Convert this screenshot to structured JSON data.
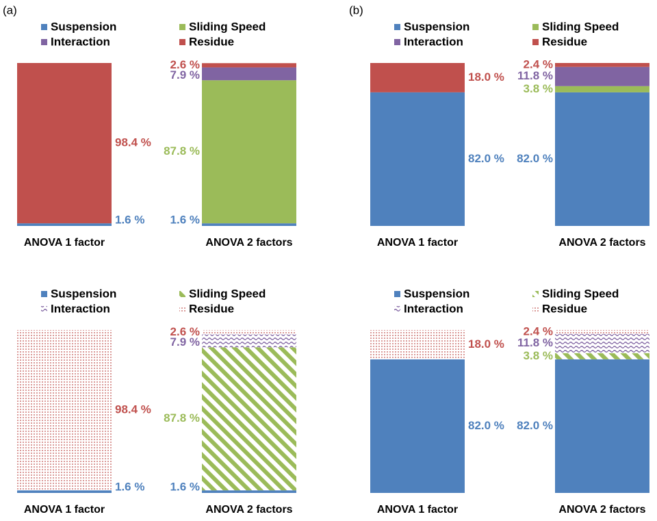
{
  "panel_labels": [
    "(a)",
    "(b)"
  ],
  "chart_data": [
    {
      "type": "bar",
      "stacked": true,
      "categories": [
        "ANOVA 1 factor",
        "ANOVA 2 factors"
      ],
      "ylim": [
        0,
        100
      ],
      "series": [
        {
          "name": "Suspension",
          "color": "#4f81bd",
          "values": [
            1.6,
            1.6
          ],
          "value_labels": [
            "1.6 %",
            "1.6 %"
          ]
        },
        {
          "name": "Sliding Speed",
          "color": "#9bbb59",
          "values": [
            null,
            87.8
          ],
          "value_labels": [
            null,
            "87.8 %"
          ]
        },
        {
          "name": "Interaction",
          "color": "#8064a2",
          "values": [
            null,
            7.9
          ],
          "value_labels": [
            null,
            "7.9 %"
          ]
        },
        {
          "name": "Residue",
          "color": "#c0504d",
          "values": [
            98.4,
            2.6
          ],
          "value_labels": [
            "98.4 %",
            "2.6 %"
          ]
        }
      ]
    },
    {
      "type": "bar",
      "stacked": true,
      "categories": [
        "ANOVA 1 factor",
        "ANOVA 2 factors"
      ],
      "ylim": [
        0,
        100
      ],
      "series": [
        {
          "name": "Suspension",
          "color": "#4f81bd",
          "values": [
            82,
            82
          ],
          "value_labels": [
            "82.0 %",
            "82.0 %"
          ]
        },
        {
          "name": "Sliding Speed",
          "color": "#9bbb59",
          "values": [
            null,
            3.8
          ],
          "value_labels": [
            null,
            "3.8 %"
          ]
        },
        {
          "name": "Interaction",
          "color": "#8064a2",
          "values": [
            null,
            11.8
          ],
          "value_labels": [
            null,
            "11.8 %"
          ]
        },
        {
          "name": "Residue",
          "color": "#c0504d",
          "values": [
            18,
            2.4
          ],
          "value_labels": [
            "18.0 %",
            "2.4 %"
          ]
        }
      ]
    },
    {
      "type": "bar",
      "stacked": true,
      "categories": [
        "ANOVA 1 factor",
        "ANOVA 2 factors"
      ],
      "ylim": [
        0,
        100
      ],
      "series": [
        {
          "name": "Suspension",
          "color": "#4f81bd",
          "pattern": "solid",
          "values": [
            1.6,
            1.6
          ],
          "value_labels": [
            "1.6 %",
            "1.6 %"
          ]
        },
        {
          "name": "Sliding Speed",
          "color": "#9bbb59",
          "pattern": "diagonal",
          "values": [
            null,
            87.8
          ],
          "value_labels": [
            null,
            "87.8 %"
          ]
        },
        {
          "name": "Interaction",
          "color": "#8064a2",
          "pattern": "wave",
          "values": [
            null,
            7.9
          ],
          "value_labels": [
            null,
            "7.9 %"
          ]
        },
        {
          "name": "Residue",
          "color": "#c0504d",
          "pattern": "dots",
          "values": [
            98.4,
            2.6
          ],
          "value_labels": [
            "98.4 %",
            "2.6 %"
          ]
        }
      ]
    },
    {
      "type": "bar",
      "stacked": true,
      "categories": [
        "ANOVA 1 factor",
        "ANOVA 2 factors"
      ],
      "ylim": [
        0,
        100
      ],
      "series": [
        {
          "name": "Suspension",
          "color": "#4f81bd",
          "pattern": "solid",
          "values": [
            82,
            82
          ],
          "value_labels": [
            "82.0 %",
            "82.0 %"
          ]
        },
        {
          "name": "Sliding Speed",
          "color": "#9bbb59",
          "pattern": "diagonal",
          "values": [
            null,
            3.8
          ],
          "value_labels": [
            null,
            "3.8 %"
          ]
        },
        {
          "name": "Interaction",
          "color": "#8064a2",
          "pattern": "wave",
          "values": [
            null,
            11.8
          ],
          "value_labels": [
            null,
            "11.8 %"
          ]
        },
        {
          "name": "Residue",
          "color": "#c0504d",
          "pattern": "dots",
          "values": [
            18,
            2.4
          ],
          "value_labels": [
            "18.0 %",
            "2.4 %"
          ]
        }
      ]
    }
  ]
}
